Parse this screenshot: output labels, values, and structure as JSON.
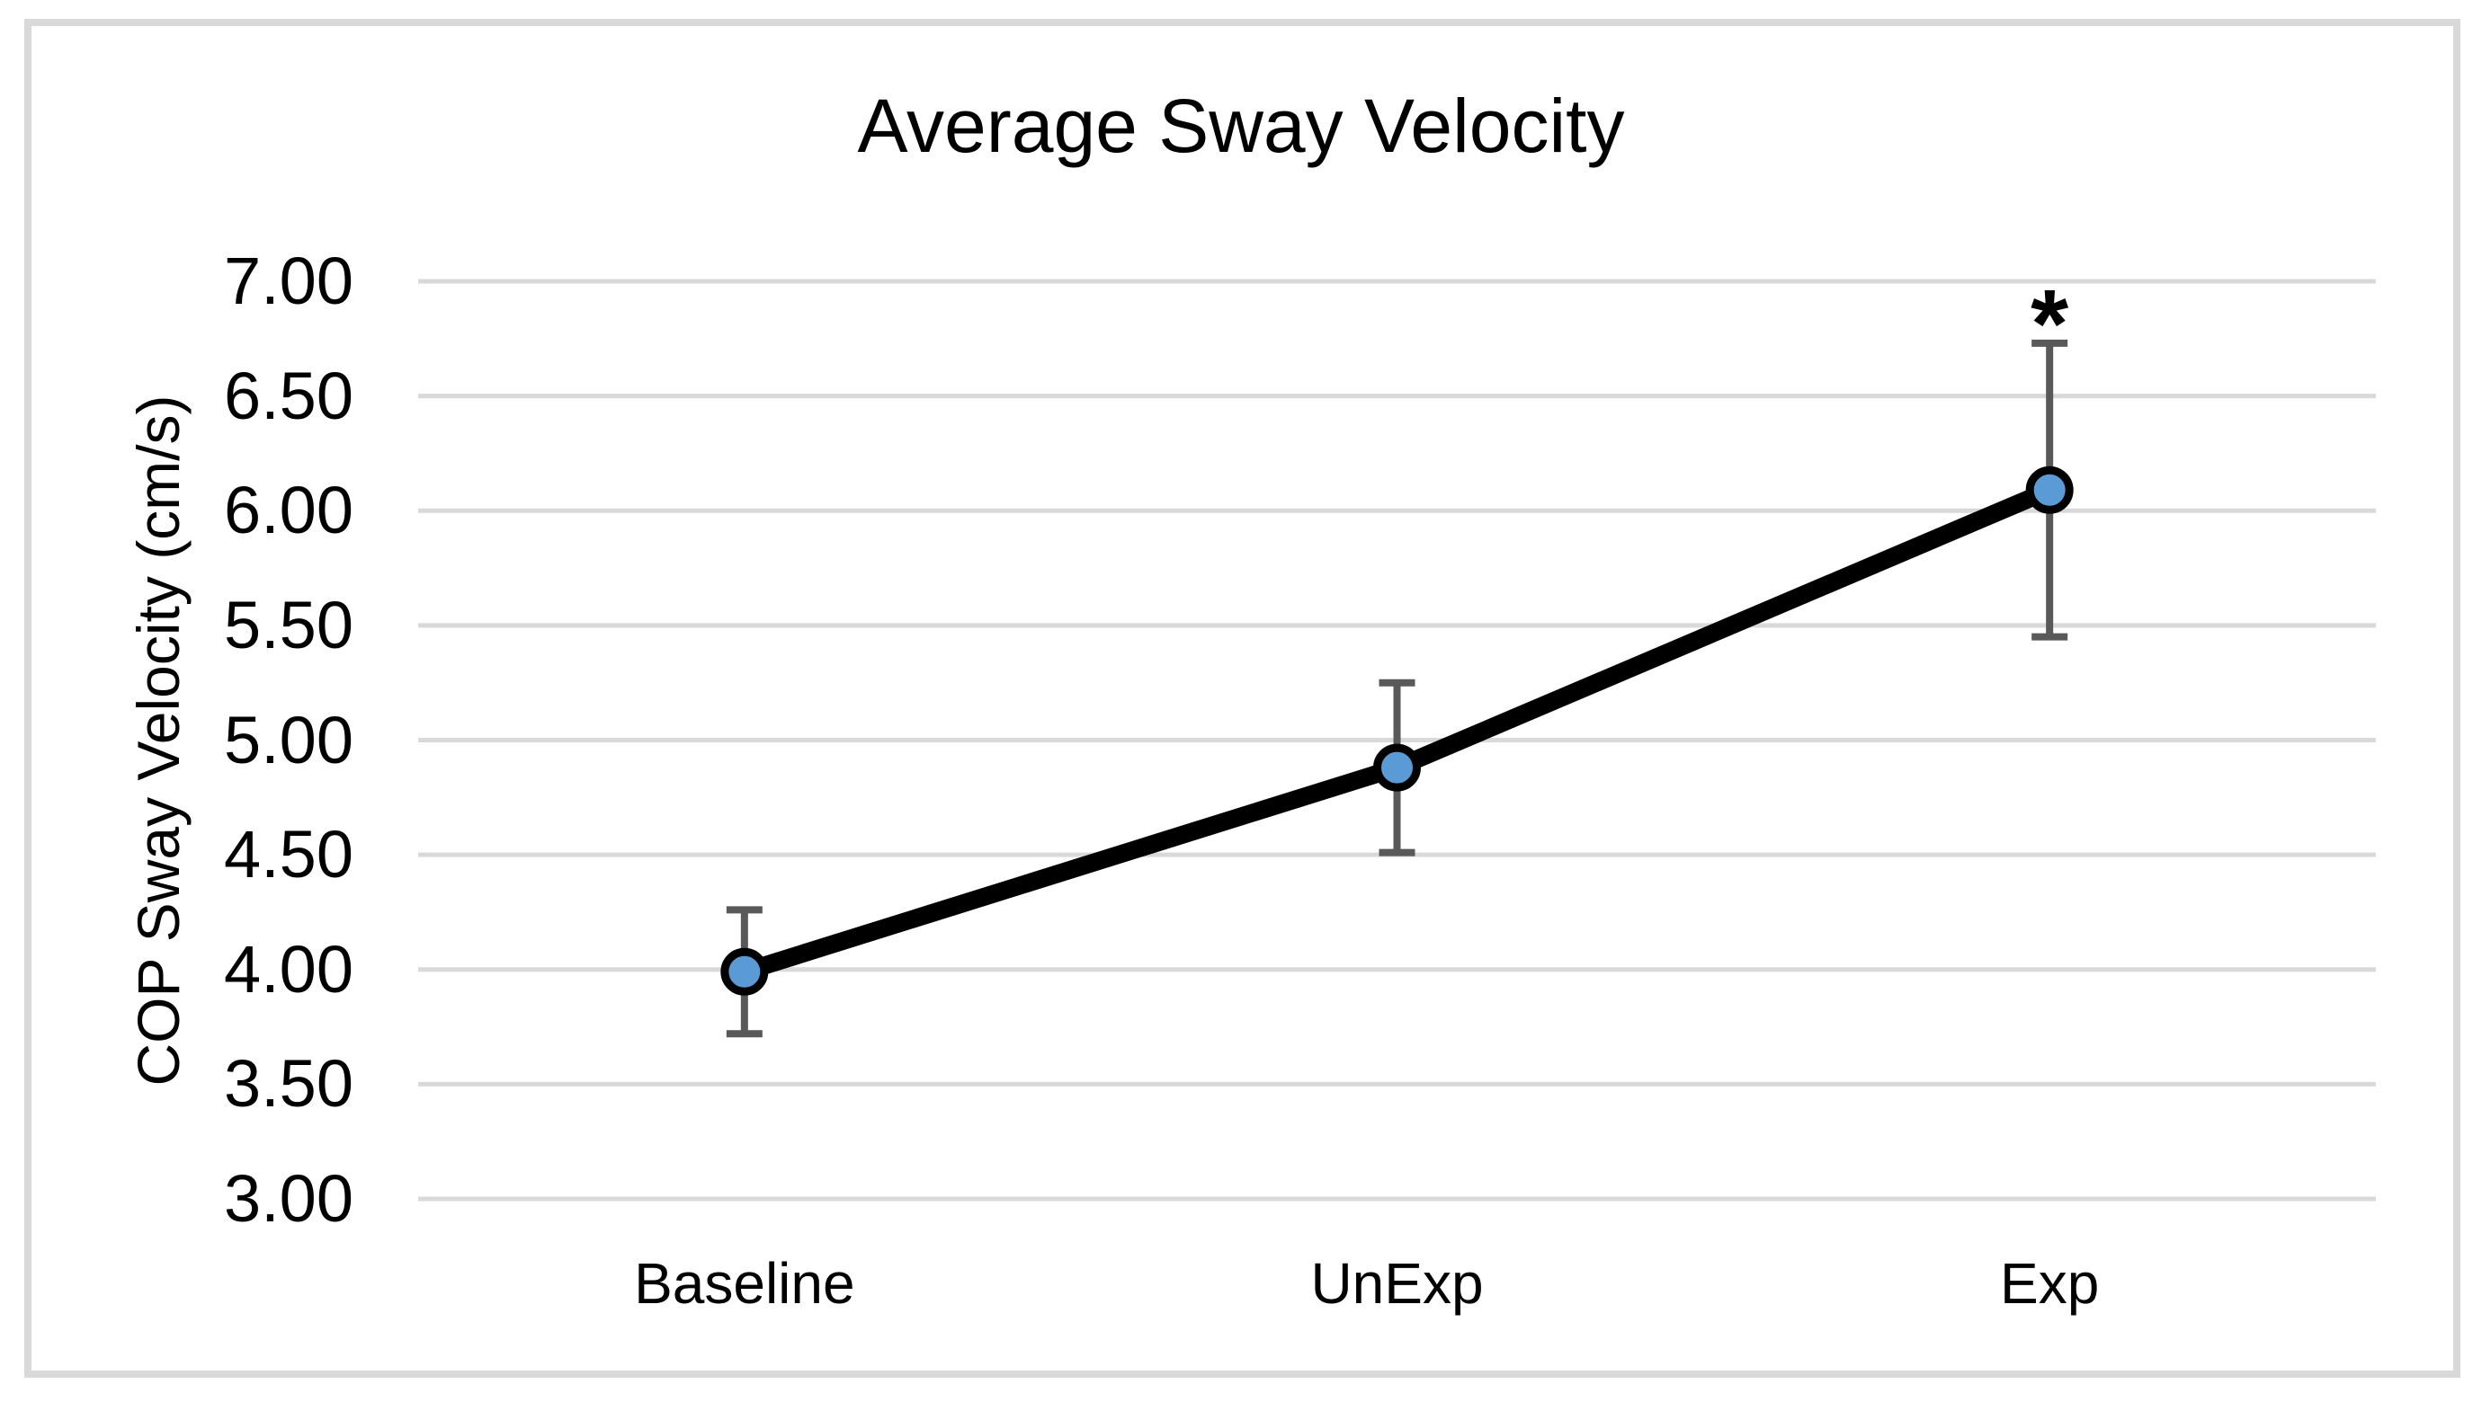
{
  "chart_data": {
    "type": "line",
    "title": "Average Sway Velocity",
    "ylabel": "COP Sway Velocity (cm/s)",
    "xlabel": "",
    "categories": [
      "Baseline",
      "UnExp",
      "Exp"
    ],
    "values": [
      3.99,
      4.88,
      6.09
    ],
    "error_plus": [
      0.27,
      0.37,
      0.64
    ],
    "error_minus": [
      0.27,
      0.37,
      0.64
    ],
    "ylim": [
      3.0,
      7.0
    ],
    "ytick_step": 0.5,
    "ytick_labels": [
      "3.00",
      "3.50",
      "4.00",
      "4.50",
      "5.00",
      "5.50",
      "6.00",
      "6.50",
      "7.00"
    ],
    "grid": true,
    "legend": false,
    "annotations": [
      {
        "text": "*",
        "category": "Exp",
        "category_index": 2,
        "position": "above-error-bar"
      }
    ],
    "colors": {
      "series_line": "#000000",
      "marker_fill": "#5b9bd5",
      "marker_border": "#000000",
      "error_bar": "#595959",
      "gridline": "#d9d9d9",
      "frame_border": "#d9d9d9",
      "text": "#000000",
      "background": "#ffffff"
    }
  }
}
